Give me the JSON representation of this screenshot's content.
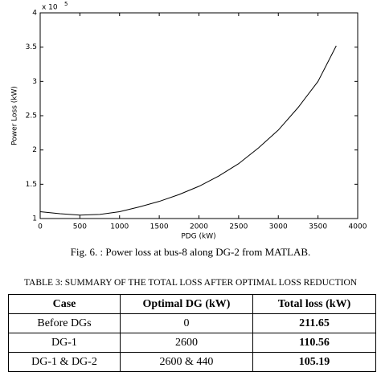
{
  "chart_data": {
    "type": "line",
    "y_scale_base": "x 10",
    "y_scale_exponent": "5",
    "xlabel": "PDG (kW)",
    "ylabel": "Power Loss (kW)",
    "x": [
      0,
      250,
      500,
      750,
      1000,
      1250,
      1500,
      1750,
      2000,
      2250,
      2500,
      2750,
      3000,
      3250,
      3500,
      3730
    ],
    "series": [
      {
        "color": "#000000",
        "values": [
          1.1,
          1.07,
          1.05,
          1.06,
          1.1,
          1.17,
          1.25,
          1.35,
          1.47,
          1.62,
          1.8,
          2.03,
          2.29,
          2.62,
          3.0,
          3.52
        ]
      }
    ],
    "xlim": [
      0,
      4000
    ],
    "xticks": [
      0,
      500,
      1000,
      1500,
      2000,
      2500,
      3000,
      3500,
      4000
    ],
    "ylim": [
      1,
      4
    ],
    "yticks": [
      1,
      1.5,
      2,
      2.5,
      3,
      3.5,
      4
    ],
    "grid": false
  },
  "caption": "Fig. 6. : Power loss at bus-8 along DG-2 from MATLAB.",
  "table": {
    "title": "TABLE 3: SUMMARY OF THE TOTAL LOSS AFTER OPTIMAL LOSS REDUCTION",
    "header": [
      "Case",
      "Optimal DG (kW)",
      "Total loss (kW)"
    ],
    "rows": [
      [
        "Before DGs",
        "0",
        "211.65"
      ],
      [
        "DG-1",
        "2600",
        "110.56"
      ],
      [
        "DG-1 & DG-2",
        "2600 & 440",
        "105.19"
      ]
    ]
  }
}
